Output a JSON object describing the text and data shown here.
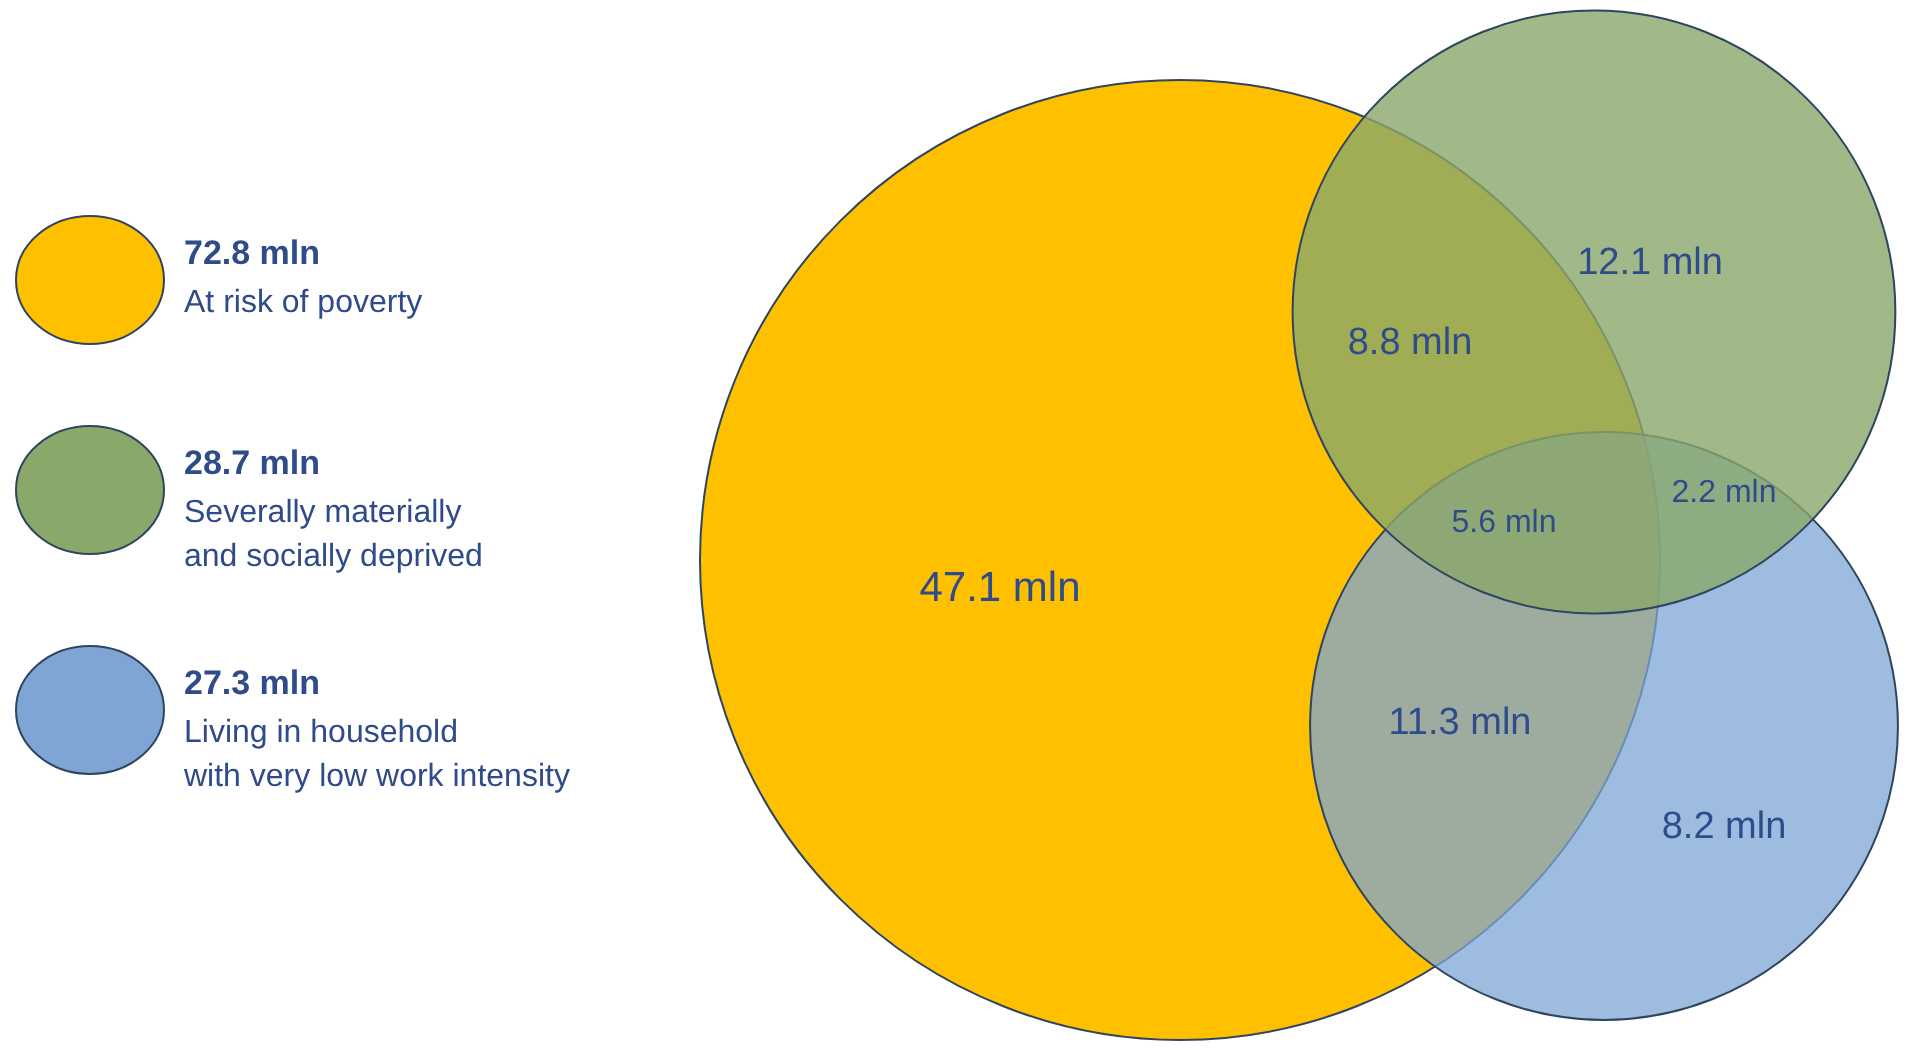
{
  "chart_data": {
    "type": "other",
    "categories": [
      "At risk of poverty",
      "Severally materially\nand socially deprived",
      "Living in household\nwith very low work intensity"
    ],
    "values": [
      72.8,
      28.7,
      27.3
    ],
    "value_labels": [
      "72.8 mln",
      "28.7 mln",
      "27.3 mln"
    ],
    "colors": [
      "#ffc000",
      "#8aa86a",
      "#7ea5d4"
    ],
    "annotations": [
      "47.1 mln",
      "8.8 mln",
      "12.1 mln",
      "5.6 mln",
      "2.2 mln",
      "11.3 mln",
      "8.2 mln"
    ]
  }
}
